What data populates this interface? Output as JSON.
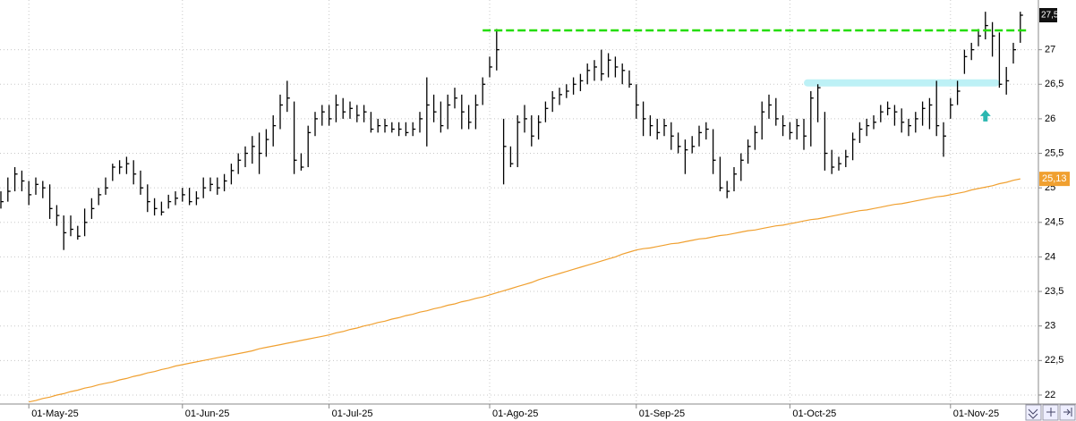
{
  "chart_data": {
    "type": "ohlc",
    "categories": [
      null,
      null,
      null,
      null,
      "01-May-25",
      null,
      null,
      null,
      null,
      null,
      null,
      null,
      null,
      null,
      null,
      null,
      null,
      null,
      null,
      null,
      null,
      null,
      null,
      null,
      null,
      null,
      "01-Jun-25",
      null,
      null,
      null,
      null,
      null,
      null,
      null,
      null,
      null,
      null,
      null,
      null,
      null,
      null,
      null,
      null,
      null,
      null,
      null,
      null,
      "01-Jul-25",
      null,
      null,
      null,
      null,
      null,
      null,
      null,
      null,
      null,
      null,
      null,
      null,
      null,
      null,
      null,
      null,
      null,
      null,
      null,
      null,
      null,
      null,
      "01-Ago-25",
      null,
      null,
      null,
      null,
      null,
      null,
      null,
      null,
      null,
      null,
      null,
      null,
      null,
      null,
      null,
      null,
      null,
      null,
      null,
      null,
      "01-Sep-25",
      null,
      null,
      null,
      null,
      null,
      null,
      null,
      null,
      null,
      null,
      null,
      null,
      null,
      null,
      null,
      null,
      null,
      null,
      null,
      null,
      null,
      "01-Oct-25",
      null,
      null,
      null,
      null,
      null,
      null,
      null,
      null,
      null,
      null,
      null,
      null,
      null,
      null,
      null,
      null,
      null,
      null,
      null,
      null,
      null,
      null,
      "01-Nov-25",
      null,
      null,
      null,
      null,
      null,
      null,
      null,
      null,
      null,
      null
    ],
    "series": [
      {
        "color": "#000000",
        "high": [
          24.95,
          25.15,
          25.3,
          25.25,
          25.1,
          25.15,
          25.1,
          25.05,
          24.75,
          24.6,
          24.6,
          24.45,
          24.7,
          24.85,
          25.0,
          25.15,
          25.35,
          25.4,
          25.45,
          25.4,
          25.25,
          25.05,
          24.85,
          24.8,
          24.9,
          24.95,
          25.0,
          25.0,
          24.95,
          25.15,
          25.15,
          25.15,
          25.2,
          25.35,
          25.5,
          25.6,
          25.75,
          25.8,
          25.85,
          26.05,
          26.35,
          26.55,
          26.25,
          25.5,
          25.9,
          26.1,
          26.2,
          26.2,
          26.35,
          26.3,
          26.25,
          26.2,
          26.2,
          26.1,
          26.0,
          26.0,
          25.95,
          25.95,
          25.95,
          25.95,
          26.1,
          26.6,
          26.35,
          26.25,
          26.35,
          26.45,
          26.35,
          26.2,
          26.35,
          26.6,
          26.9,
          27.3,
          26.0,
          25.6,
          26.05,
          26.2,
          26.05,
          26.05,
          26.25,
          26.4,
          26.45,
          26.5,
          26.6,
          26.65,
          26.8,
          26.85,
          27.0,
          26.95,
          26.9,
          26.8,
          26.7,
          26.5,
          26.25,
          26.05,
          26.0,
          26.0,
          25.95,
          25.8,
          25.7,
          25.75,
          25.9,
          25.95,
          25.85,
          25.45,
          25.1,
          25.3,
          25.5,
          25.7,
          25.9,
          26.25,
          26.35,
          26.3,
          26.05,
          25.95,
          26.0,
          26.0,
          26.4,
          26.5,
          26.1,
          25.55,
          25.45,
          25.55,
          25.8,
          25.95,
          26.0,
          26.05,
          26.2,
          26.25,
          26.2,
          26.15,
          26.0,
          26.1,
          26.25,
          26.3,
          26.55,
          25.95,
          26.3,
          26.55,
          27.0,
          27.1,
          27.3,
          27.55,
          27.4,
          27.25,
          26.75,
          27.1,
          27.55
        ],
        "low": [
          24.7,
          24.8,
          24.95,
          24.95,
          24.75,
          24.9,
          24.85,
          24.55,
          24.45,
          24.1,
          24.3,
          24.25,
          24.3,
          24.55,
          24.75,
          24.9,
          25.1,
          25.2,
          25.2,
          25.05,
          24.9,
          24.65,
          24.6,
          24.6,
          24.7,
          24.75,
          24.8,
          24.75,
          24.75,
          24.85,
          24.95,
          24.9,
          24.95,
          25.05,
          25.2,
          25.3,
          25.35,
          25.2,
          25.45,
          25.6,
          25.85,
          26.1,
          25.2,
          25.25,
          25.3,
          25.75,
          25.9,
          25.9,
          25.95,
          26.0,
          26.0,
          25.95,
          25.95,
          25.8,
          25.8,
          25.8,
          25.8,
          25.75,
          25.75,
          25.75,
          25.8,
          25.6,
          25.95,
          25.8,
          25.85,
          26.15,
          25.85,
          25.85,
          25.85,
          26.2,
          26.6,
          26.7,
          25.05,
          25.3,
          25.3,
          25.8,
          25.6,
          25.7,
          25.95,
          26.1,
          26.2,
          26.3,
          26.35,
          26.4,
          26.5,
          26.55,
          26.55,
          26.6,
          26.6,
          26.5,
          26.45,
          26.0,
          25.75,
          25.75,
          25.7,
          25.75,
          25.55,
          25.5,
          25.2,
          25.5,
          25.6,
          25.7,
          25.2,
          24.95,
          24.85,
          24.95,
          25.1,
          25.35,
          25.55,
          25.7,
          26.0,
          25.9,
          25.75,
          25.7,
          25.7,
          25.55,
          25.6,
          25.95,
          25.25,
          25.2,
          25.25,
          25.3,
          25.4,
          25.65,
          25.75,
          25.85,
          25.95,
          26.05,
          25.9,
          25.8,
          25.75,
          25.8,
          25.9,
          25.85,
          25.75,
          25.45,
          26.0,
          26.2,
          26.65,
          26.85,
          27.05,
          27.15,
          26.9,
          26.45,
          26.35,
          26.8,
          27.1
        ],
        "close": [
          24.8,
          24.95,
          25.2,
          25.1,
          24.9,
          25.05,
          25.0,
          24.7,
          24.6,
          24.35,
          24.4,
          24.3,
          24.5,
          24.7,
          24.9,
          25.0,
          25.3,
          25.3,
          25.35,
          25.2,
          25.0,
          24.8,
          24.7,
          24.65,
          24.8,
          24.85,
          24.9,
          24.8,
          24.85,
          25.0,
          25.05,
          25.0,
          25.1,
          25.25,
          25.4,
          25.5,
          25.6,
          25.5,
          25.7,
          25.9,
          26.2,
          26.3,
          25.4,
          25.3,
          25.8,
          26.0,
          26.1,
          26.0,
          26.2,
          26.1,
          26.15,
          26.05,
          26.1,
          25.85,
          25.9,
          25.9,
          25.85,
          25.85,
          25.8,
          25.85,
          26.0,
          26.2,
          26.1,
          25.9,
          26.2,
          26.3,
          26.1,
          25.95,
          26.2,
          26.5,
          26.75,
          27.0,
          25.6,
          25.35,
          25.95,
          26.0,
          25.75,
          25.95,
          26.15,
          26.3,
          26.35,
          26.4,
          26.5,
          26.55,
          26.7,
          26.75,
          26.65,
          26.85,
          26.75,
          26.7,
          26.5,
          26.2,
          26.0,
          25.9,
          25.8,
          25.9,
          25.75,
          25.6,
          25.55,
          25.6,
          25.8,
          25.85,
          25.4,
          25.0,
          24.95,
          25.2,
          25.4,
          25.6,
          25.8,
          26.1,
          26.2,
          26.0,
          25.9,
          25.8,
          25.9,
          25.75,
          26.3,
          26.45,
          25.5,
          25.3,
          25.35,
          25.45,
          25.7,
          25.85,
          25.9,
          25.95,
          26.1,
          26.15,
          26.1,
          25.95,
          25.9,
          26.0,
          26.15,
          26.2,
          25.9,
          25.75,
          26.2,
          26.4,
          26.9,
          27.0,
          27.2,
          27.35,
          27.2,
          26.5,
          26.55,
          27.0,
          27.5
        ],
        "last_value_label": "27,5"
      },
      {
        "type": "line",
        "color": "#f0a030",
        "values": [
          null,
          null,
          null,
          null,
          21.9,
          21.92,
          21.95,
          21.97,
          22.0,
          22.02,
          22.05,
          22.07,
          22.1,
          22.12,
          22.15,
          22.17,
          22.19,
          22.22,
          22.24,
          22.27,
          22.29,
          22.32,
          22.34,
          22.37,
          22.39,
          22.42,
          22.44,
          22.46,
          22.48,
          22.5,
          22.52,
          22.54,
          22.56,
          22.58,
          22.6,
          22.62,
          22.64,
          22.67,
          22.69,
          22.71,
          22.73,
          22.75,
          22.77,
          22.79,
          22.81,
          22.83,
          22.85,
          22.87,
          22.9,
          22.92,
          22.95,
          22.97,
          23.0,
          23.02,
          23.05,
          23.07,
          23.1,
          23.12,
          23.15,
          23.17,
          23.2,
          23.22,
          23.25,
          23.27,
          23.3,
          23.32,
          23.35,
          23.37,
          23.4,
          23.42,
          23.45,
          23.48,
          23.51,
          23.54,
          23.57,
          23.6,
          23.63,
          23.67,
          23.7,
          23.73,
          23.76,
          23.79,
          23.82,
          23.85,
          23.88,
          23.91,
          23.94,
          23.97,
          24.0,
          24.04,
          24.07,
          24.1,
          24.12,
          24.13,
          24.15,
          24.17,
          24.19,
          24.2,
          24.22,
          24.24,
          24.26,
          24.27,
          24.29,
          24.31,
          24.32,
          24.34,
          24.36,
          24.38,
          24.39,
          24.41,
          24.43,
          24.45,
          24.46,
          24.48,
          24.5,
          24.52,
          24.54,
          24.55,
          24.57,
          24.59,
          24.61,
          24.63,
          24.65,
          24.67,
          24.68,
          24.7,
          24.72,
          24.74,
          24.76,
          24.77,
          24.79,
          24.81,
          24.83,
          24.85,
          24.87,
          24.88,
          24.9,
          24.92,
          24.94,
          24.97,
          24.99,
          25.01,
          25.03,
          25.06,
          25.08,
          25.11,
          25.13
        ],
        "last_value_label": "25,13"
      }
    ],
    "hline": {
      "value": 27.28,
      "start": 69,
      "color": "#22dd00"
    },
    "zone": {
      "value": 26.52,
      "start": 115,
      "end": 143,
      "color": "#bdf1f6"
    },
    "arrow": {
      "index": 141,
      "value": 26.0,
      "color": "#2ab7b0"
    },
    "ylim": [
      21.87,
      27.72
    ],
    "yticks": [
      22,
      {
        "value": 22.5,
        "label": "22,5"
      },
      23,
      {
        "value": 23.5,
        "label": "23,5"
      },
      24,
      {
        "value": 24.5,
        "label": "24,5"
      },
      25,
      {
        "value": 25.5,
        "label": "25,5"
      },
      26,
      {
        "value": 26.5,
        "label": "26,5"
      },
      27
    ],
    "grid": true
  }
}
